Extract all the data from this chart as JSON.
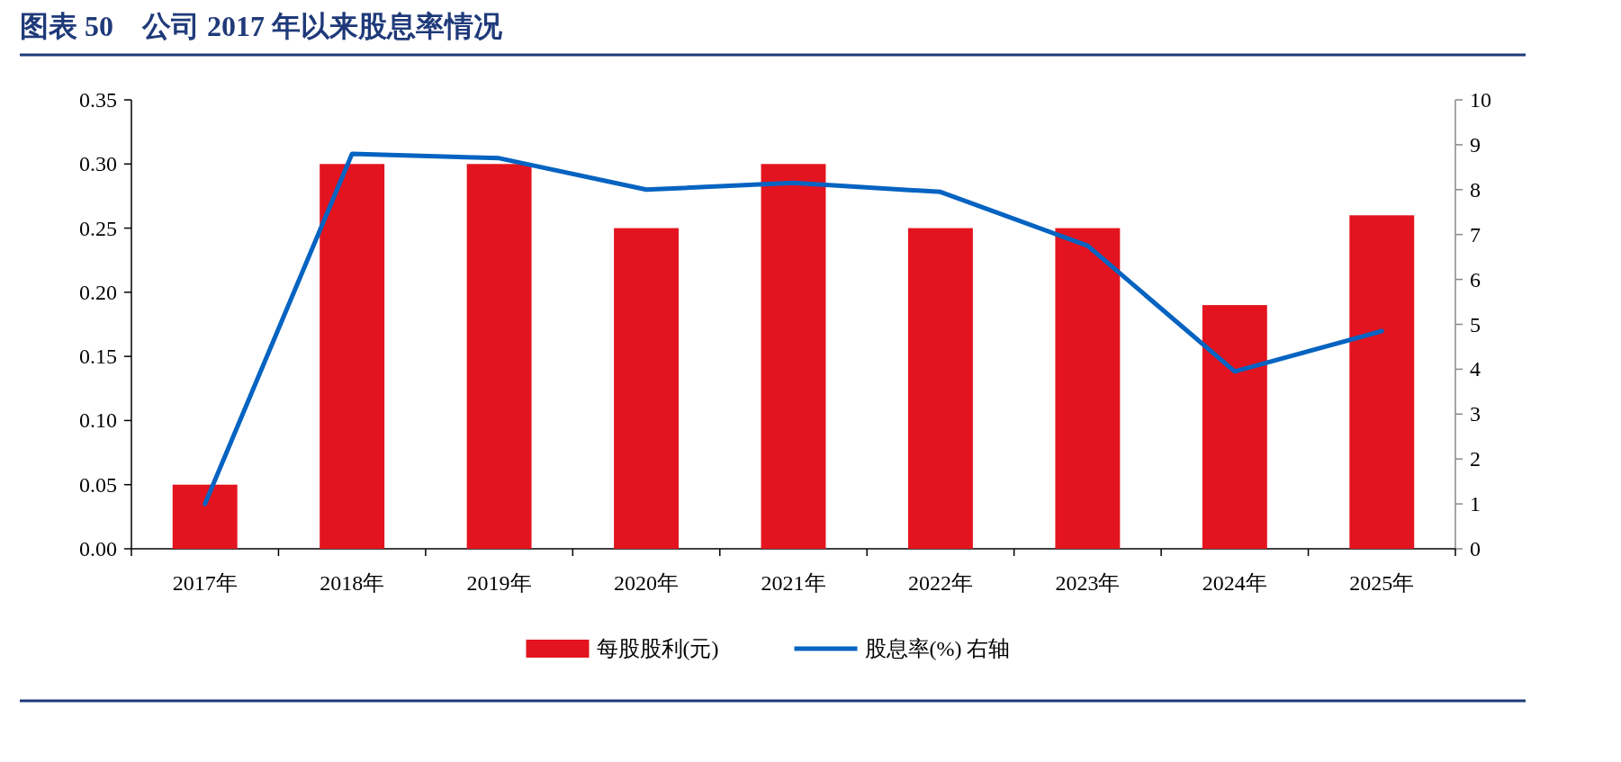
{
  "chart_data": {
    "type": "bar",
    "title": "图表 50　公司 2017 年以来股息率情况",
    "categories": [
      "2017年",
      "2018年",
      "2019年",
      "2020年",
      "2021年",
      "2022年",
      "2023年",
      "2024年",
      "2025年"
    ],
    "series": [
      {
        "name": "每股股利(元)",
        "color": "#e3141f",
        "values": [
          0.05,
          0.3,
          0.3,
          0.25,
          0.3,
          0.25,
          0.25,
          0.19,
          0.26
        ]
      },
      {
        "name": "股息率(%) 右轴",
        "type": "line",
        "axis": "y2",
        "color": "#0563c1",
        "values": [
          1.0,
          8.8,
          8.7,
          8.0,
          8.15,
          7.95,
          6.75,
          3.95,
          4.85
        ]
      }
    ],
    "ylim": [
      0,
      0.35
    ],
    "yticks": [
      {
        "value": 0,
        "label": "0.00"
      },
      {
        "value": 0.05,
        "label": "0.05"
      },
      {
        "value": 0.1,
        "label": "0.10"
      },
      {
        "value": 0.15,
        "label": "0.15"
      },
      {
        "value": 0.2,
        "label": "0.20"
      },
      {
        "value": 0.25,
        "label": "0.25"
      },
      {
        "value": 0.3,
        "label": "0.30"
      },
      {
        "value": 0.35,
        "label": "0.35"
      }
    ],
    "y2lim": [
      0,
      10
    ],
    "y2ticks": [
      0,
      1,
      2,
      3,
      4,
      5,
      6,
      7,
      8,
      9,
      10
    ],
    "legend": "bottom"
  }
}
